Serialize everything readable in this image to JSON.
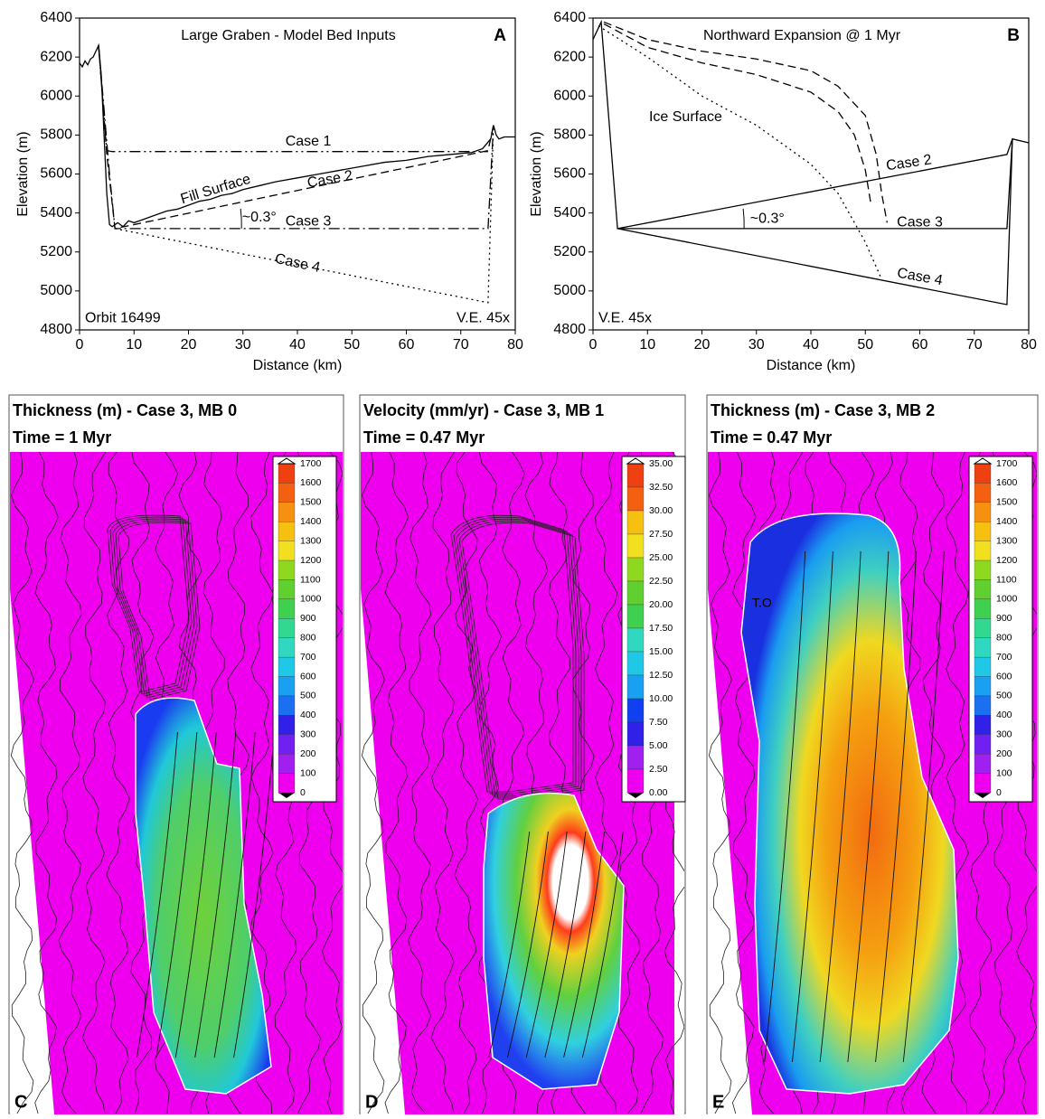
{
  "chart_data": [
    {
      "type": "line",
      "title": "Large Graben - Model Bed Inputs",
      "panel": "A",
      "x_label": "Distance (km)",
      "y_label": "Elevation (m)",
      "xlim": [
        0,
        80
      ],
      "xticks": [
        0,
        10,
        20,
        30,
        40,
        50,
        60,
        70,
        80
      ],
      "ylim": [
        4800,
        6400
      ],
      "yticks": [
        4800,
        5000,
        5200,
        5400,
        5600,
        5800,
        6000,
        6200,
        6400
      ],
      "annotations": [
        "~0.3°",
        "Orbit 16499",
        "V.E. 45x"
      ],
      "series": [
        {
          "name": "Fill Surface",
          "color": "#000000",
          "dash": "solid",
          "x": [
            0,
            0.5,
            1,
            1.5,
            2,
            2.5,
            3,
            3.5,
            4,
            4.5,
            5,
            5.5,
            6,
            7,
            8,
            9,
            10,
            12,
            14,
            16,
            18,
            20,
            22,
            24,
            26,
            28,
            30,
            33,
            36,
            40,
            44,
            48,
            52,
            56,
            60,
            64,
            68,
            72,
            74,
            75.5,
            76,
            76.5,
            77,
            78,
            80
          ],
          "values": [
            6170,
            6150,
            6180,
            6160,
            6190,
            6200,
            6230,
            6260,
            6100,
            5800,
            5500,
            5340,
            5330,
            5350,
            5330,
            5360,
            5350,
            5370,
            5390,
            5410,
            5420,
            5440,
            5460,
            5470,
            5490,
            5500,
            5520,
            5540,
            5560,
            5580,
            5600,
            5620,
            5640,
            5660,
            5670,
            5690,
            5700,
            5710,
            5730,
            5780,
            5850,
            5800,
            5780,
            5790,
            5790
          ]
        },
        {
          "name": "Case 1",
          "color": "#000000",
          "dash": "dashdotdot",
          "x": [
            3.5,
            5,
            6,
            75
          ],
          "values": [
            6250,
            5720,
            5715,
            5715
          ]
        },
        {
          "name": "Case 2",
          "color": "#000000",
          "dash": "dash",
          "x": [
            3.5,
            5,
            6.5,
            75,
            76
          ],
          "values": [
            6260,
            5700,
            5320,
            5720,
            5850
          ]
        },
        {
          "name": "Case 3",
          "color": "#000000",
          "dash": "dashdot",
          "x": [
            3.5,
            5.5,
            6.5,
            75,
            76
          ],
          "values": [
            6260,
            5600,
            5320,
            5320,
            5850
          ]
        },
        {
          "name": "Case 4",
          "color": "#000000",
          "dash": "dot",
          "x": [
            6.5,
            75,
            76
          ],
          "values": [
            5320,
            4940,
            5850
          ]
        }
      ]
    },
    {
      "type": "line",
      "title": "Northward Expansion @ 1 Myr",
      "panel": "B",
      "x_label": "Distance (km)",
      "y_label": "Elevation (m)",
      "xlim": [
        0,
        80
      ],
      "xticks": [
        0,
        10,
        20,
        30,
        40,
        50,
        60,
        70,
        80
      ],
      "ylim": [
        4800,
        6400
      ],
      "yticks": [
        4800,
        5000,
        5200,
        5400,
        5600,
        5800,
        6000,
        6200,
        6400
      ],
      "annotations": [
        "Ice Surface",
        "~0.3°",
        "V.E. 45x"
      ],
      "series": [
        {
          "color": "#000000",
          "dash": "dash",
          "x": [
            2,
            10,
            20,
            30,
            40,
            45,
            50,
            52,
            53,
            54
          ],
          "values": [
            6380,
            6290,
            6230,
            6190,
            6130,
            6050,
            5900,
            5700,
            5500,
            5350
          ]
        },
        {
          "color": "#000000",
          "dash": "dash",
          "x": [
            2,
            10,
            20,
            30,
            40,
            45,
            48,
            50,
            51
          ],
          "values": [
            6370,
            6250,
            6170,
            6110,
            6020,
            5920,
            5800,
            5620,
            5450
          ]
        },
        {
          "color": "#000000",
          "dash": "dot",
          "x": [
            1,
            10,
            20,
            30,
            40,
            45,
            50,
            53
          ],
          "values": [
            6360,
            6200,
            6000,
            5850,
            5650,
            5500,
            5250,
            5060
          ]
        },
        {
          "name": "Case 2",
          "color": "#000000",
          "dash": "solid",
          "x": [
            0,
            1.5,
            4.5,
            76,
            77,
            80
          ],
          "values": [
            6290,
            6380,
            5320,
            5700,
            5780,
            5760
          ]
        },
        {
          "name": "Case 3",
          "color": "#000000",
          "dash": "solid",
          "x": [
            4.5,
            76,
            77
          ],
          "values": [
            5320,
            5320,
            5780
          ]
        },
        {
          "name": "Case 4",
          "color": "#000000",
          "dash": "solid",
          "x": [
            4.5,
            76,
            77
          ],
          "values": [
            5320,
            4930,
            5780
          ]
        }
      ]
    }
  ],
  "maps": [
    {
      "letter": "C",
      "title": "Thickness (m) - Case 3, MB 0",
      "time": "Time = 1 Myr",
      "colorbar": [
        1700,
        1600,
        1500,
        1400,
        1300,
        1200,
        1100,
        1000,
        900,
        800,
        700,
        600,
        500,
        400,
        300,
        200,
        100,
        0
      ]
    },
    {
      "letter": "D",
      "title": "Velocity (mm/yr) - Case 3, MB 1",
      "time": "Time = 0.47 Myr",
      "colorbar": [
        "35.00",
        "32.50",
        "30.00",
        "27.50",
        "25.00",
        "22.50",
        "20.00",
        "17.50",
        "15.00",
        "12.50",
        "10.00",
        "7.50",
        "5.00",
        "2.50",
        "0.00"
      ]
    },
    {
      "letter": "E",
      "title": "Thickness (m) - Case 3, MB 2",
      "time": "Time = 0.47 Myr",
      "annotations": [
        "T.O"
      ],
      "colorbar": [
        1700,
        1600,
        1500,
        1400,
        1300,
        1200,
        1100,
        1000,
        900,
        800,
        700,
        600,
        500,
        400,
        300,
        200,
        100,
        0
      ]
    }
  ]
}
